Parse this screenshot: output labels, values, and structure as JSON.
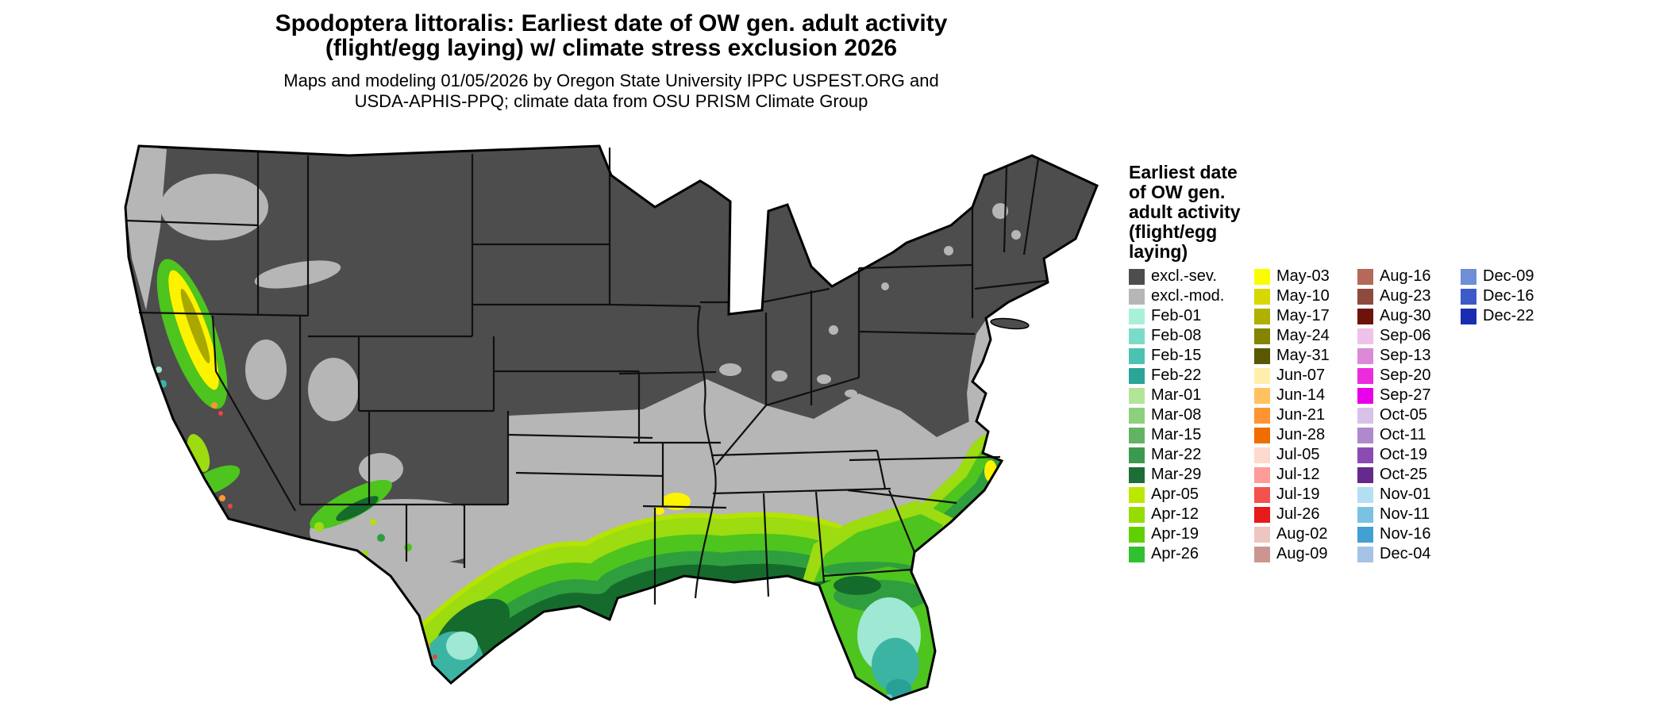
{
  "title": {
    "line1": "Spodoptera littoralis: Earliest date of OW gen. adult activity",
    "line2": "(flight/egg laying) w/ climate stress exclusion 2026"
  },
  "subtitle": {
    "line1": "Maps and modeling 01/05/2026 by Oregon State University IPPC USPEST.ORG and",
    "line2": "USDA-APHIS-PPQ; climate data from OSU PRISM Climate Group"
  },
  "legend": {
    "title_lines": [
      "Earliest date",
      "of OW gen.",
      "adult activity",
      "(flight/egg",
      "laying)"
    ],
    "columns": [
      [
        {
          "label": "excl.-sev.",
          "color": "#4d4d4d"
        },
        {
          "label": "excl.-mod.",
          "color": "#b6b6b6"
        },
        {
          "label": "Feb-01",
          "color": "#a8f0da"
        },
        {
          "label": "Feb-08",
          "color": "#7adcc8"
        },
        {
          "label": "Feb-15",
          "color": "#4cc2b2"
        },
        {
          "label": "Feb-22",
          "color": "#2aa598"
        },
        {
          "label": "Mar-01",
          "color": "#b2e49a"
        },
        {
          "label": "Mar-08",
          "color": "#8cd07c"
        },
        {
          "label": "Mar-15",
          "color": "#62b464"
        },
        {
          "label": "Mar-22",
          "color": "#3c9a4e"
        },
        {
          "label": "Mar-29",
          "color": "#1c6e34"
        },
        {
          "label": "Apr-05",
          "color": "#bce800"
        },
        {
          "label": "Apr-12",
          "color": "#96dc00"
        },
        {
          "label": "Apr-19",
          "color": "#60d000"
        },
        {
          "label": "Apr-26",
          "color": "#30c030"
        }
      ],
      [
        {
          "label": "May-03",
          "color": "#fcfc00"
        },
        {
          "label": "May-10",
          "color": "#d8d800"
        },
        {
          "label": "May-17",
          "color": "#b0b000"
        },
        {
          "label": "May-24",
          "color": "#848400"
        },
        {
          "label": "May-31",
          "color": "#585800"
        },
        {
          "label": "Jun-07",
          "color": "#ffefaa"
        },
        {
          "label": "Jun-14",
          "color": "#ffc25e"
        },
        {
          "label": "Jun-21",
          "color": "#ff9530"
        },
        {
          "label": "Jun-28",
          "color": "#f06e00"
        },
        {
          "label": "Jul-05",
          "color": "#ffd8ce"
        },
        {
          "label": "Jul-12",
          "color": "#ff9c98"
        },
        {
          "label": "Jul-19",
          "color": "#f4524e"
        },
        {
          "label": "Jul-26",
          "color": "#e61a18"
        },
        {
          "label": "Aug-02",
          "color": "#eec6c0"
        },
        {
          "label": "Aug-09",
          "color": "#cc9690"
        }
      ],
      [
        {
          "label": "Aug-16",
          "color": "#b4695a"
        },
        {
          "label": "Aug-23",
          "color": "#8f4a3e"
        },
        {
          "label": "Aug-30",
          "color": "#6e120c"
        },
        {
          "label": "Sep-06",
          "color": "#f0c2ea"
        },
        {
          "label": "Sep-13",
          "color": "#dc8ad8"
        },
        {
          "label": "Sep-20",
          "color": "#ec2cdc"
        },
        {
          "label": "Sep-27",
          "color": "#e800e8"
        },
        {
          "label": "Oct-05",
          "color": "#d8c2e6"
        },
        {
          "label": "Oct-11",
          "color": "#b088cc"
        },
        {
          "label": "Oct-19",
          "color": "#8a4cb2"
        },
        {
          "label": "Oct-25",
          "color": "#642a8e"
        },
        {
          "label": "Nov-01",
          "color": "#b2e0f2"
        },
        {
          "label": "Nov-11",
          "color": "#7ac2e2"
        },
        {
          "label": "Nov-16",
          "color": "#42a0d2"
        },
        {
          "label": "Dec-04",
          "color": "#a6c2e6"
        }
      ],
      [
        {
          "label": "Dec-09",
          "color": "#6e8ed8"
        },
        {
          "label": "Dec-16",
          "color": "#3c5ac8"
        },
        {
          "label": "Dec-22",
          "color": "#1a2cb0"
        }
      ]
    ]
  },
  "map_colors": {
    "excl_sev": "#4d4d4d",
    "excl_mod": "#b6b6b6",
    "band_apr05": "#b4e400",
    "band_apr12": "#9cdc10",
    "band_apr26": "#4ec41e",
    "band_mar15": "#2f9e3f",
    "band_mar29": "#156b2c",
    "feb_pale": "#9fe8d4",
    "feb_teal": "#3cb4a4",
    "feb_deep": "#27a096",
    "yellow": "#fdf200",
    "olive": "#a8a800",
    "orange": "#ff9632",
    "red": "#ee4440",
    "pale_blue": "#7cc4e4"
  }
}
